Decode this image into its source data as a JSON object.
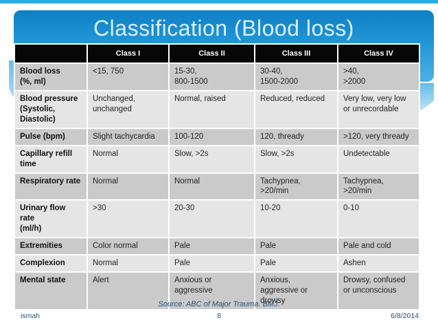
{
  "title": "Classification (Blood loss)",
  "colors": {
    "accent_strip": "#2cace3",
    "title_bar_top": "#0f7fc5",
    "title_bar_bottom": "#4ab1e3",
    "title_text": "#dceffb",
    "header_bg": "#070707",
    "header_text": "#ffffff",
    "row_dark": "#cacaca",
    "row_light": "#e5e5e5",
    "footer_text": "#1f4e79"
  },
  "table": {
    "columns": [
      "",
      "Class I",
      "Class II",
      "Class III",
      "Class IV"
    ],
    "rows": [
      {
        "label": "Blood loss\n(%, ml)",
        "values": [
          "<15, 750",
          "15-30,\n800-1500",
          "30-40,\n1500-2000",
          ">40,\n>2000"
        ]
      },
      {
        "label": "Blood pressure\n(Systolic,\nDiastolic)",
        "values": [
          "Unchanged,\nunchanged",
          "Normal, raised",
          "Reduced, reduced",
          "Very low, very low\nor  unrecordable"
        ]
      },
      {
        "label": "Pulse (bpm)",
        "values": [
          "Slight tachycardia",
          "100-120",
          "120, thready",
          ">120, very thready"
        ]
      },
      {
        "label": "Capillary refill\ntime",
        "values": [
          "Normal",
          "Slow, >2s",
          "Slow, >2s",
          "Undetectable"
        ]
      },
      {
        "label": "Respiratory rate",
        "values": [
          "Normal",
          "Normal",
          "Tachypnea,\n>20/min",
          "Tachypnea,\n>20/min"
        ]
      },
      {
        "label": "Urinary flow rate\n(ml/h)",
        "values": [
          ">30",
          "20-30",
          "10-20",
          "0-10"
        ]
      },
      {
        "label": "Extremities",
        "values": [
          "Color normal",
          "Pale",
          "Pale",
          "Pale and cold"
        ]
      },
      {
        "label": "Complexion",
        "values": [
          "Normal",
          "Pale",
          "Pale",
          "Ashen"
        ]
      },
      {
        "label": "Mental state",
        "values": [
          "Alert",
          "Anxious or\naggressive",
          "Anxious,\naggressive or\ndrowsy",
          "Drowsy, confused\nor unconscious"
        ]
      }
    ]
  },
  "source": "Source: ABC of Major Trauma. BMJ.",
  "footer": {
    "author": "ismah",
    "page": "8",
    "date": "6/8/2014"
  }
}
